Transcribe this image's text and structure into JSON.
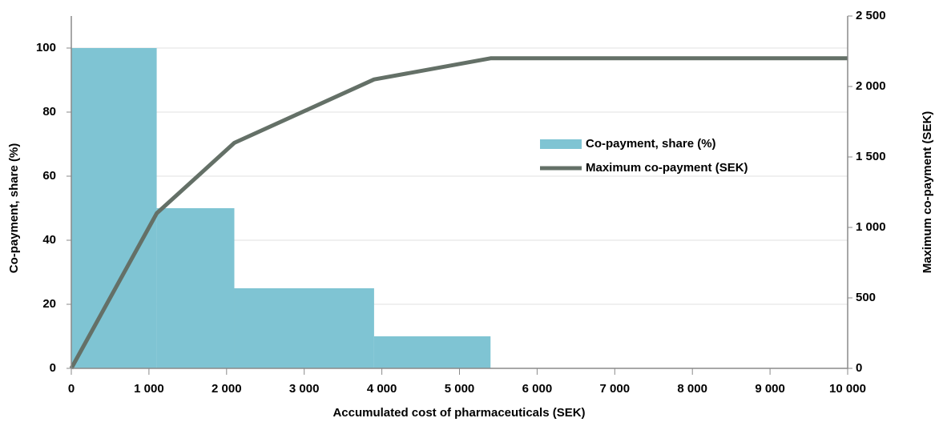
{
  "chart_data": {
    "type": "combo",
    "xlabel": "Accumulated cost of pharmaceuticals (SEK)",
    "ylabel": "Co-payment, share (%)",
    "y2label": "Maximum co-payment (SEK)",
    "xlim": [
      0,
      10000
    ],
    "xticks": [
      0,
      {
        "value": 1000,
        "label": "1 000"
      },
      {
        "value": 2000,
        "label": "2 000"
      },
      {
        "value": 3000,
        "label": "3 000"
      },
      {
        "value": 4000,
        "label": "4 000"
      },
      {
        "value": 5000,
        "label": "5 000"
      },
      {
        "value": 6000,
        "label": "6 000"
      },
      {
        "value": 7000,
        "label": "7 000"
      },
      {
        "value": 8000,
        "label": "8 000"
      },
      {
        "value": 9000,
        "label": "9 000"
      },
      {
        "value": 10000,
        "label": "10 000"
      }
    ],
    "ylim": [
      0,
      110
    ],
    "yticks": [
      0,
      20,
      40,
      60,
      80,
      100
    ],
    "y2lim": [
      0,
      2500
    ],
    "y2ticks": [
      0,
      500,
      {
        "value": 1000,
        "label": "1 000"
      },
      {
        "value": 1500,
        "label": "1 500"
      },
      {
        "value": 2000,
        "label": "2 000"
      },
      {
        "value": 2500,
        "label": "2 500"
      }
    ],
    "grid": true,
    "series": [
      {
        "name": "Co-payment, share (%)",
        "kind": "bar",
        "color": "#7fc4d3",
        "bins": [
          0,
          1100,
          2100,
          3900,
          5400
        ],
        "values": [
          100,
          50,
          25,
          10
        ]
      },
      {
        "name": "Maximum co-payment (SEK)",
        "kind": "line",
        "color": "#647067",
        "axis": "y2",
        "x": [
          0,
          1100,
          2100,
          3900,
          5400,
          10000
        ],
        "values": [
          0,
          1100,
          1600,
          2050,
          2200,
          2200
        ]
      }
    ]
  }
}
